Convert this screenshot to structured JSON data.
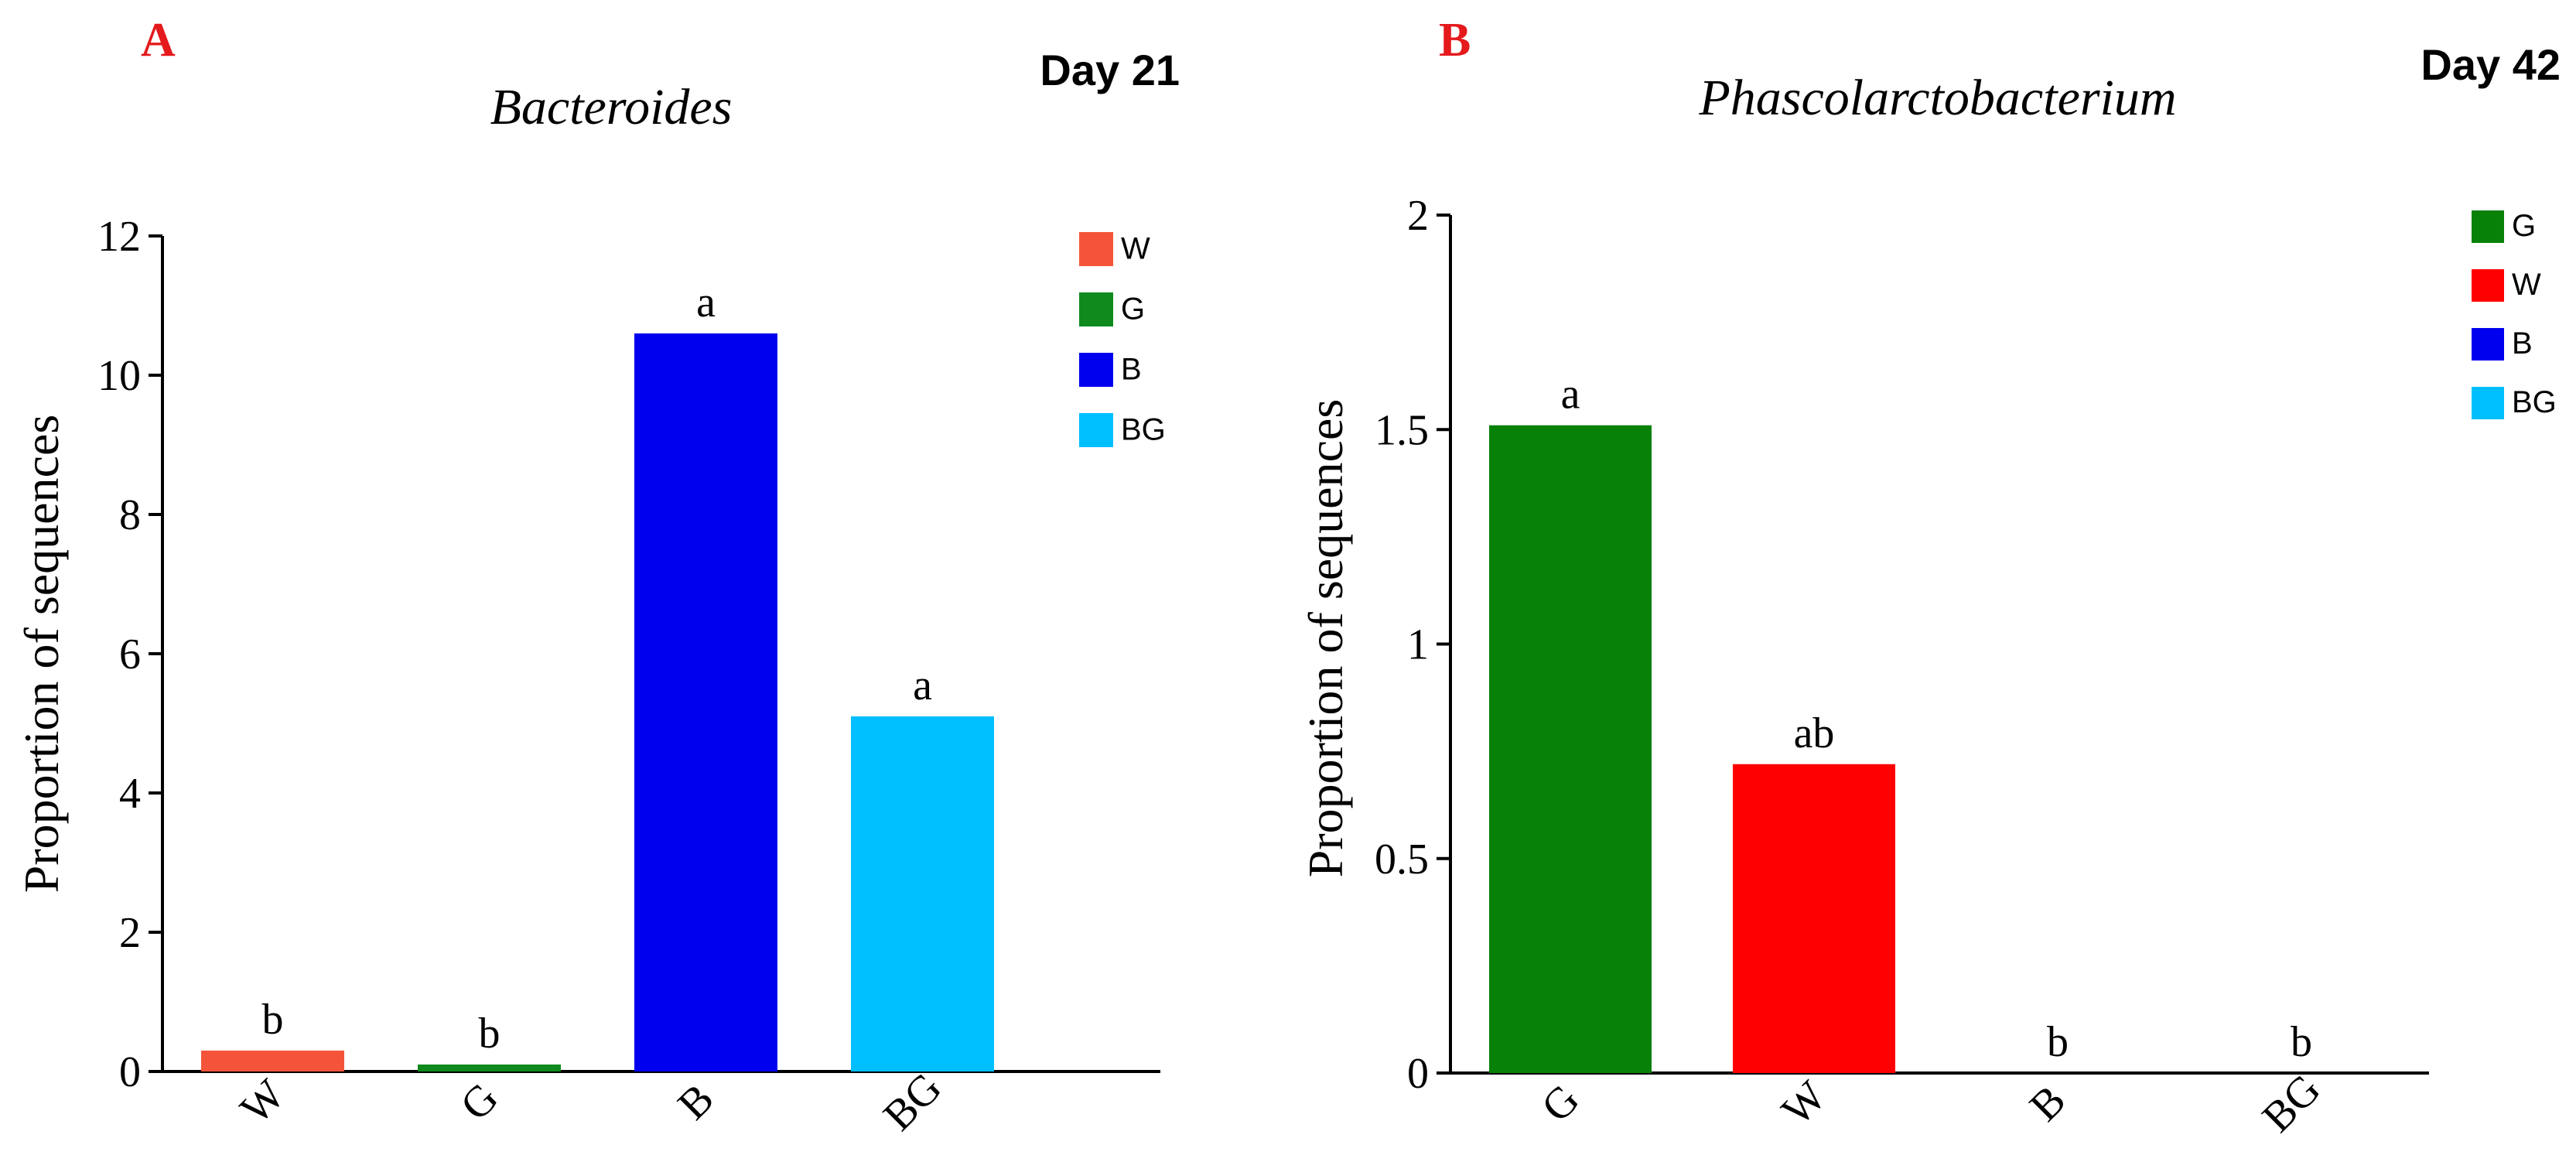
{
  "chart_data": [
    {
      "type": "bar",
      "panel_label": "A",
      "title": "Bacteroides",
      "day_label": "Day 21",
      "xlabel": "",
      "ylabel": "Proportion of sequences",
      "ylim": [
        0,
        12
      ],
      "yticks": [
        0,
        2,
        4,
        6,
        8,
        10,
        12
      ],
      "ytick_labels": [
        "0",
        "2",
        "4",
        "6",
        "8",
        "10",
        "12"
      ],
      "categories": [
        "W",
        "G",
        "B",
        "BG"
      ],
      "values": [
        0.3,
        0.1,
        10.6,
        5.1
      ],
      "significance": [
        "b",
        "b",
        "a",
        "a"
      ],
      "colors": [
        "#f4553a",
        "#0f8a1c",
        "#0000ee",
        "#00bfff"
      ],
      "legend": [
        {
          "label": "W",
          "color": "#f4553a"
        },
        {
          "label": "G",
          "color": "#0f8a1c"
        },
        {
          "label": "B",
          "color": "#0000ee"
        },
        {
          "label": "BG",
          "color": "#00bfff"
        }
      ],
      "legend_position": "top-right"
    },
    {
      "type": "bar",
      "panel_label": "B",
      "title": "Phascolarctobacterium",
      "day_label": "Day 42",
      "xlabel": "",
      "ylabel": "Proportion of sequences",
      "ylim": [
        0,
        2
      ],
      "yticks": [
        0,
        0.5,
        1,
        1.5,
        2
      ],
      "ytick_labels": [
        "0",
        "0.5",
        "1",
        "1.5",
        "2"
      ],
      "categories": [
        "G",
        "W",
        "B",
        "BG"
      ],
      "values": [
        1.51,
        0.72,
        0,
        0
      ],
      "significance": [
        "a",
        "ab",
        "b",
        "b"
      ],
      "colors": [
        "#078107",
        "#ff0000",
        "#0000ee",
        "#00bfff"
      ],
      "legend": [
        {
          "label": "G",
          "color": "#078107"
        },
        {
          "label": "W",
          "color": "#ff0000"
        },
        {
          "label": "B",
          "color": "#0000ee"
        },
        {
          "label": "BG",
          "color": "#00bfff"
        }
      ],
      "legend_position": "top-right"
    }
  ],
  "colors": {
    "panel_label": "#e41a1c",
    "axis": "#000000"
  }
}
